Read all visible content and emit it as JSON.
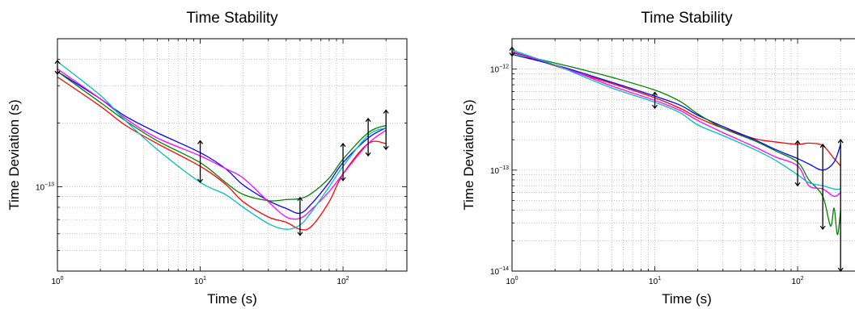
{
  "chart_data": [
    {
      "type": "line",
      "title": "Time Stability",
      "xlabel": "Time (s)",
      "ylabel": "Time Deviation (s)",
      "xscale": "log",
      "yscale": "log",
      "xlim": [
        1,
        280
      ],
      "ylim": [
        4e-14,
        5e-13
      ],
      "grid": true,
      "x_ticks": [
        {
          "value": 1,
          "base": "10",
          "exp": "0"
        },
        {
          "value": 10,
          "base": "10",
          "exp": "1"
        },
        {
          "value": 100,
          "base": "10",
          "exp": "2"
        }
      ],
      "y_ticks": [
        {
          "value": 1e-13,
          "base": "10",
          "exp": "−13"
        }
      ],
      "series": [
        {
          "color": "#ff0000",
          "x": [
            1,
            2,
            3,
            5,
            10,
            15,
            20,
            30,
            40,
            50,
            60,
            80,
            100,
            150,
            200
          ],
          "y": [
            3.3e-13,
            2.4e-13,
            1.95e-13,
            1.6e-13,
            1.25e-13,
            1.03e-13,
            8.5e-14,
            7.2e-14,
            6.8e-14,
            6.3e-14,
            6.5e-14,
            8.5e-14,
            1.15e-13,
            1.6e-13,
            1.6e-13
          ]
        },
        {
          "color": "#0000ff",
          "x": [
            1,
            2,
            3,
            5,
            10,
            15,
            20,
            30,
            40,
            50,
            60,
            80,
            100,
            150,
            200
          ],
          "y": [
            3.5e-13,
            2.6e-13,
            2.15e-13,
            1.8e-13,
            1.45e-13,
            1.22e-13,
            1.02e-13,
            8.6e-14,
            7.9e-14,
            7.5e-14,
            8.3e-14,
            1.05e-13,
            1.3e-13,
            1.7e-13,
            1.9e-13
          ]
        },
        {
          "color": "#008000",
          "x": [
            1,
            2,
            3,
            5,
            10,
            15,
            20,
            30,
            40,
            50,
            60,
            80,
            100,
            150,
            200
          ],
          "y": [
            3.5e-13,
            2.5e-13,
            2.05e-13,
            1.65e-13,
            1.3e-13,
            1.05e-13,
            9.2e-14,
            8.6e-14,
            8.7e-14,
            8.8e-14,
            9.3e-14,
            1.1e-13,
            1.35e-13,
            1.8e-13,
            1.95e-13
          ]
        },
        {
          "color": "#ff00ff",
          "x": [
            1,
            2,
            3,
            5,
            10,
            15,
            20,
            30,
            40,
            50,
            60,
            80,
            100,
            150,
            200
          ],
          "y": [
            3.6e-13,
            2.6e-13,
            2.1e-13,
            1.7e-13,
            1.4e-13,
            1.22e-13,
            1.1e-13,
            8.5e-14,
            7.2e-14,
            7.1e-14,
            7.8e-14,
            9.5e-14,
            1.15e-13,
            1.6e-13,
            1.85e-13
          ]
        },
        {
          "color": "#00bfbf",
          "x": [
            1,
            2,
            3,
            5,
            10,
            15,
            20,
            30,
            40,
            50,
            60,
            80,
            100,
            150,
            200
          ],
          "y": [
            3.9e-13,
            2.7e-13,
            2.05e-13,
            1.5e-13,
            1.05e-13,
            9.2e-14,
            8e-14,
            6.7e-14,
            6.3e-14,
            6.6e-14,
            7.6e-14,
            1e-13,
            1.25e-13,
            1.75e-13,
            1.9e-13
          ]
        }
      ],
      "error_bars": [
        {
          "x": 1,
          "y": 3.6e-13,
          "low": 3.4e-13,
          "high": 3.95e-13
        },
        {
          "x": 10,
          "y": 1.32e-13,
          "low": 1.05e-13,
          "high": 1.65e-13
        },
        {
          "x": 50,
          "y": 7.1e-14,
          "low": 5.9e-14,
          "high": 8.9e-14
        },
        {
          "x": 100,
          "y": 1.3e-13,
          "low": 1.07e-13,
          "high": 1.6e-13
        },
        {
          "x": 150,
          "y": 1.72e-13,
          "low": 1.4e-13,
          "high": 2.1e-13
        },
        {
          "x": 200,
          "y": 1.85e-13,
          "low": 1.5e-13,
          "high": 2.3e-13
        }
      ]
    },
    {
      "type": "line",
      "title": "Time Stability",
      "xlabel": "Time (s)",
      "ylabel": "Time Deviation (s)",
      "xscale": "log",
      "yscale": "log",
      "xlim": [
        1,
        280
      ],
      "ylim": [
        1e-14,
        2e-12
      ],
      "grid": true,
      "x_ticks": [
        {
          "value": 1,
          "base": "10",
          "exp": "0"
        },
        {
          "value": 10,
          "base": "10",
          "exp": "1"
        },
        {
          "value": 100,
          "base": "10",
          "exp": "2"
        }
      ],
      "y_ticks": [
        {
          "value": 1e-12,
          "base": "10",
          "exp": "−12"
        },
        {
          "value": 1e-13,
          "base": "10",
          "exp": "−13"
        },
        {
          "value": 1e-14,
          "base": "10",
          "exp": "−14"
        }
      ],
      "series": [
        {
          "color": "#ff0000",
          "x": [
            1,
            2,
            3,
            5,
            10,
            15,
            20,
            30,
            50,
            70,
            100,
            120,
            150,
            180,
            200
          ],
          "y": [
            1.48e-12,
            1.08e-12,
            9e-13,
            7.2e-13,
            5.2e-13,
            4.1e-13,
            3.3e-13,
            2.6e-13,
            2.05e-13,
            1.9e-13,
            1.8e-13,
            1.85e-13,
            1.75e-13,
            1.3e-13,
            1.1e-13
          ]
        },
        {
          "color": "#0000ff",
          "x": [
            1,
            2,
            3,
            5,
            10,
            15,
            20,
            30,
            50,
            70,
            100,
            120,
            150,
            180,
            200
          ],
          "y": [
            1.4e-12,
            1.1e-12,
            9.3e-13,
            7.4e-13,
            5.4e-13,
            4.4e-13,
            3.5e-13,
            2.7e-13,
            2e-13,
            1.6e-13,
            1.3e-13,
            1.15e-13,
            1e-13,
            1.2e-13,
            1.8e-13
          ]
        },
        {
          "color": "#008000",
          "x": [
            1,
            2,
            3,
            5,
            10,
            15,
            20,
            30,
            50,
            70,
            100,
            120,
            150,
            170,
            180,
            190,
            200
          ],
          "y": [
            1.45e-12,
            1.15e-12,
            1e-12,
            8.3e-13,
            6.2e-13,
            4.8e-13,
            3.6e-13,
            2.6e-13,
            1.95e-13,
            1.55e-13,
            1.2e-13,
            8e-14,
            5.5e-14,
            2.8e-14,
            4.2e-14,
            2.3e-14,
            4e-14
          ]
        },
        {
          "color": "#ff00ff",
          "x": [
            1,
            2,
            3,
            5,
            10,
            15,
            20,
            30,
            50,
            70,
            100,
            120,
            150,
            180,
            200
          ],
          "y": [
            1.5e-12,
            1.1e-12,
            9e-13,
            6.8e-13,
            4.9e-13,
            3.9e-13,
            3.1e-13,
            2.35e-13,
            1.7e-13,
            1.35e-13,
            1.1e-13,
            7e-14,
            6.5e-14,
            5.5e-14,
            6e-14
          ]
        },
        {
          "color": "#00bfbf",
          "x": [
            1,
            2,
            3,
            5,
            10,
            15,
            20,
            30,
            50,
            70,
            100,
            120,
            150,
            180,
            200
          ],
          "y": [
            1.55e-12,
            1.1e-12,
            8.7e-13,
            6.5e-13,
            4.7e-13,
            3.7e-13,
            2.8e-13,
            2.2e-13,
            1.6e-13,
            1.25e-13,
            9e-14,
            7.5e-14,
            7e-14,
            6.5e-14,
            6.5e-14
          ]
        }
      ],
      "error_bars": [
        {
          "x": 1,
          "y": 1.5e-12,
          "low": 1.35e-12,
          "high": 1.65e-12
        },
        {
          "x": 10,
          "y": 5.2e-13,
          "low": 4.1e-13,
          "high": 5.9e-13
        },
        {
          "x": 100,
          "y": 1.3e-13,
          "low": 7e-14,
          "high": 1.95e-13
        },
        {
          "x": 150,
          "y": 8.5e-14,
          "low": 2.6e-14,
          "high": 1.8e-13
        },
        {
          "x": 200,
          "y": 5.5e-14,
          "low": 1e-14,
          "high": 2e-13
        }
      ]
    }
  ]
}
